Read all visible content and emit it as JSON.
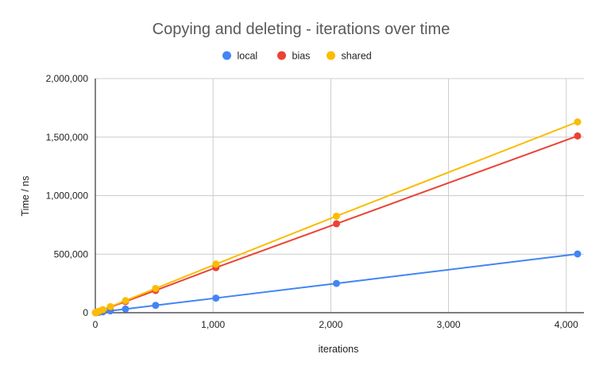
{
  "chart_data": {
    "type": "line",
    "title": "Copying and deleting - iterations over time",
    "xlabel": "iterations",
    "ylabel": "Time / ns",
    "x": [
      2,
      4,
      8,
      16,
      32,
      64,
      128,
      256,
      512,
      1024,
      2048,
      4096
    ],
    "xlim": [
      0,
      4150
    ],
    "ylim": [
      0,
      2000000
    ],
    "x_ticks": [
      0,
      1000,
      2000,
      3000,
      4000
    ],
    "x_tick_labels": [
      "0",
      "1,000",
      "2,000",
      "3,000",
      "4,000"
    ],
    "y_ticks": [
      0,
      500000,
      1000000,
      1500000,
      2000000
    ],
    "y_tick_labels": [
      "0",
      "500,000",
      "1,000,000",
      "1,500,000",
      "2,000,000"
    ],
    "grid": true,
    "legend_position": "top",
    "series": [
      {
        "name": "local",
        "color": "#4285f4",
        "values": [
          250,
          500,
          1000,
          2000,
          4000,
          8000,
          16000,
          31500,
          63000,
          125000,
          250000,
          502000
        ]
      },
      {
        "name": "bias",
        "color": "#ea4335",
        "values": [
          750,
          1500,
          3000,
          6000,
          12000,
          24000,
          48000,
          95000,
          190000,
          385000,
          760000,
          1510000
        ]
      },
      {
        "name": "shared",
        "color": "#fbbc04",
        "values": [
          800,
          1600,
          3200,
          6500,
          13000,
          26000,
          52000,
          103000,
          207000,
          415000,
          825000,
          1630000
        ]
      }
    ]
  }
}
